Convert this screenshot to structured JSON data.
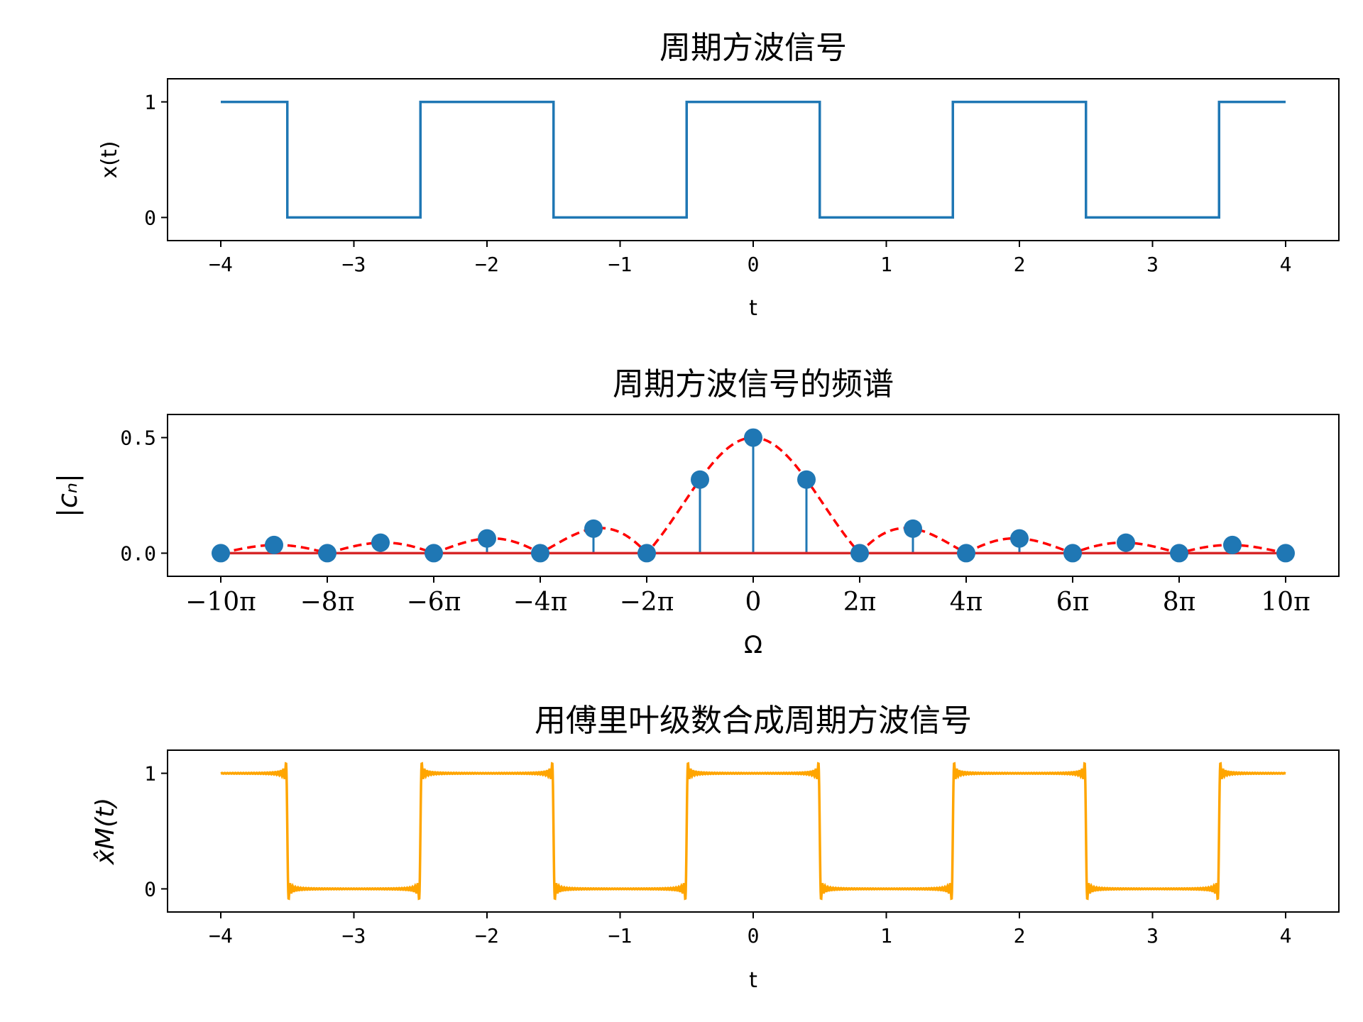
{
  "chart_data": [
    {
      "type": "line",
      "title": "周期方波信号",
      "xlabel": "t",
      "ylabel": "x(t)",
      "xlim": [
        -4.4,
        4.4
      ],
      "ylim": [
        -0.2,
        1.2
      ],
      "xticks": [
        -4,
        -3,
        -2,
        -1,
        0,
        1,
        2,
        3,
        4
      ],
      "xtick_labels": [
        "−4",
        "−3",
        "−2",
        "−1",
        "0",
        "1",
        "2",
        "3",
        "4"
      ],
      "yticks": [
        0,
        1
      ],
      "ytick_labels": [
        "0",
        "1"
      ],
      "series": [
        {
          "color": "#1f77b4",
          "x": [
            -4,
            -3.5,
            -3.5,
            -2.5,
            -2.5,
            -1.5,
            -1.5,
            -0.5,
            -0.5,
            0.5,
            0.5,
            1.5,
            1.5,
            2.5,
            2.5,
            3.5,
            3.5,
            4
          ],
          "y": [
            1,
            1,
            0,
            0,
            1,
            1,
            0,
            0,
            1,
            1,
            0,
            0,
            1,
            1,
            0,
            0,
            1,
            1
          ]
        }
      ]
    },
    {
      "type": "stem",
      "title": "周期方波信号的频谱",
      "xlabel": "Ω",
      "ylabel": "|cₙ|",
      "xlim": [
        -11,
        11
      ],
      "ylim": [
        -0.1,
        0.6
      ],
      "xticks": [
        -10,
        -8,
        -6,
        -4,
        -2,
        0,
        2,
        4,
        6,
        8,
        10
      ],
      "xtick_labels": [
        "−10π",
        "−8π",
        "−6π",
        "−4π",
        "−2π",
        "0",
        "2π",
        "4π",
        "6π",
        "8π",
        "10π"
      ],
      "yticks": [
        0,
        0.5
      ],
      "ytick_labels": [
        "0.0",
        "0.5"
      ],
      "stems": {
        "color": "#1f77b4",
        "baseline_color": "#d62728",
        "x": [
          -10,
          -9,
          -8,
          -7,
          -6,
          -5,
          -4,
          -3,
          -2,
          -1,
          0,
          1,
          2,
          3,
          4,
          5,
          6,
          7,
          8,
          9,
          10
        ],
        "y": [
          0,
          0.0354,
          0,
          0.0455,
          0,
          0.0637,
          0,
          0.1061,
          0,
          0.3183,
          0.5,
          0.3183,
          0,
          0.1061,
          0,
          0.0637,
          0,
          0.0455,
          0,
          0.0354,
          0
        ]
      },
      "envelope": {
        "color": "#ff0000",
        "style": "dashed",
        "function": "abs(0.5*sinc(x/2))"
      }
    },
    {
      "type": "line",
      "title": "用傅里叶级数合成周期方波信号",
      "xlabel": "t",
      "ylabel": "x̂M(t)",
      "xlim": [
        -4.4,
        4.4
      ],
      "ylim": [
        -0.2,
        1.2
      ],
      "xticks": [
        -4,
        -3,
        -2,
        -1,
        0,
        1,
        2,
        3,
        4
      ],
      "xtick_labels": [
        "−4",
        "−3",
        "−2",
        "−1",
        "0",
        "1",
        "2",
        "3",
        "4"
      ],
      "yticks": [
        0,
        1
      ],
      "ytick_labels": [
        "0",
        "1"
      ],
      "series": [
        {
          "color": "#ffa500",
          "harmonics": 99,
          "t_range": [
            -4,
            4
          ]
        }
      ]
    }
  ]
}
